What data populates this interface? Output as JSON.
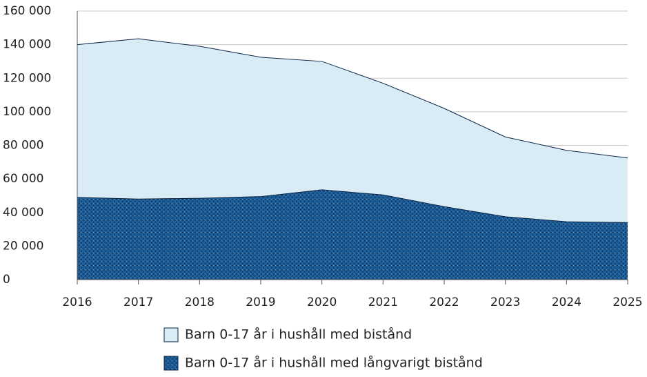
{
  "chart_data": {
    "type": "area",
    "x": [
      2016,
      2017,
      2018,
      2019,
      2020,
      2021,
      2022,
      2023,
      2024,
      2025
    ],
    "series": [
      {
        "name": "Barn 0-17 år i hushåll med bistånd",
        "color": "#d9ecf5",
        "values": [
          140000,
          143500,
          139000,
          132500,
          130000,
          117000,
          102000,
          85000,
          77000,
          72500
        ]
      },
      {
        "name": "Barn 0-17 år i hushåll med långvarigt bistånd",
        "color": "#1f5f99",
        "values": [
          49000,
          48000,
          48500,
          49500,
          53500,
          50500,
          43500,
          37500,
          34500,
          34000
        ]
      }
    ],
    "xlim": [
      2016,
      2025
    ],
    "xticks": [
      2016,
      2017,
      2018,
      2019,
      2020,
      2021,
      2022,
      2023,
      2024,
      2025
    ],
    "ylim": [
      0,
      160000
    ],
    "yticks": [
      0,
      {
        "value": 20000,
        "label": "20 000"
      },
      {
        "value": 40000,
        "label": "40 000"
      },
      {
        "value": 60000,
        "label": "60 000"
      },
      {
        "value": 80000,
        "label": "80 000"
      },
      {
        "value": 100000,
        "label": "100 000"
      },
      {
        "value": 120000,
        "label": "120 000"
      },
      {
        "value": 140000,
        "label": "140 000"
      },
      {
        "value": 160000,
        "label": "160 000"
      }
    ],
    "grid": true,
    "legend": "bottom"
  }
}
